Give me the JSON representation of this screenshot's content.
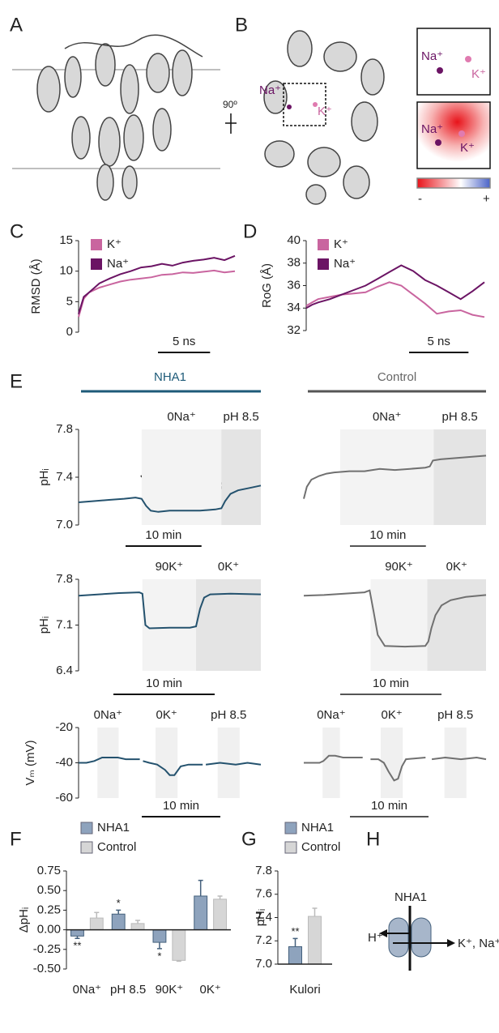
{
  "figure": {
    "panel_labels": [
      "A",
      "B",
      "C",
      "D",
      "E",
      "F",
      "G",
      "H"
    ],
    "panel_A": {
      "rotation": "90º"
    },
    "panel_B": {
      "main_na": "Na⁺",
      "main_k": "K⁺",
      "inset1_na": "Na⁺",
      "inset1_k": "K⁺",
      "inset2_na": "Na⁺",
      "inset2_k": "K⁺",
      "scale_min": "-",
      "scale_max": "+"
    },
    "panel_E": {
      "left_title": "NHA1",
      "right_title": "Control"
    },
    "panel_H": {
      "protein": "NHA1",
      "left_ion": "H⁺",
      "right_ions": "K⁺, Na⁺"
    }
  },
  "chart_data": [
    {
      "type": "line",
      "ylabel": "RMSD (Å)",
      "x": [
        0,
        0.5,
        1,
        2,
        3,
        4,
        5,
        6,
        7,
        8,
        9,
        10,
        11,
        12,
        13,
        14,
        15
      ],
      "xlim": [
        0,
        15
      ],
      "ylim": [
        0,
        15
      ],
      "yticks": [
        0,
        5,
        10,
        15
      ],
      "series": [
        {
          "name": "K⁺",
          "color": "#c9659f",
          "values": [
            2.5,
            5.5,
            6.5,
            7.3,
            7.8,
            8.3,
            8.6,
            8.8,
            9.0,
            9.4,
            9.5,
            9.8,
            9.7,
            9.9,
            10.1,
            9.8,
            10.0
          ]
        },
        {
          "name": "Na⁺",
          "color": "#6b1464",
          "values": [
            3.0,
            5.8,
            6.5,
            8.0,
            8.8,
            9.5,
            10.0,
            10.6,
            10.8,
            11.2,
            10.9,
            11.4,
            11.7,
            11.9,
            12.2,
            11.8,
            12.5
          ]
        }
      ],
      "scalebar": {
        "length": 5,
        "label": "5 ns"
      }
    },
    {
      "type": "line",
      "ylabel": "RoG (Å)",
      "x": [
        0,
        0.5,
        1,
        2,
        3,
        4,
        5,
        6,
        7,
        8,
        9,
        10,
        11,
        12,
        13,
        14,
        15
      ],
      "xlim": [
        0,
        15
      ],
      "ylim": [
        32,
        40
      ],
      "yticks": [
        32,
        34,
        36,
        38,
        40
      ],
      "series": [
        {
          "name": "K⁺",
          "color": "#c9659f",
          "values": [
            34.2,
            34.5,
            34.8,
            35.0,
            35.2,
            35.3,
            35.4,
            35.9,
            36.3,
            36.0,
            35.2,
            34.4,
            33.5,
            33.7,
            33.8,
            33.4,
            33.2
          ]
        },
        {
          "name": "Na⁺",
          "color": "#6b1464",
          "values": [
            34.0,
            34.3,
            34.5,
            34.8,
            35.2,
            35.6,
            36.0,
            36.6,
            37.2,
            37.8,
            37.3,
            36.5,
            36.0,
            35.4,
            34.8,
            35.5,
            36.3
          ]
        }
      ],
      "scalebar": {
        "length": 5,
        "label": "5 ns"
      }
    },
    {
      "type": "line",
      "ylabel": "pHᵢ",
      "color": "#24526e",
      "x": [
        0,
        2,
        4,
        6,
        7.5,
        8.3,
        8.9,
        9.5,
        10.5,
        12,
        14,
        16,
        18,
        18.8,
        19.3,
        20,
        21,
        22.5,
        24
      ],
      "values": [
        7.19,
        7.2,
        7.21,
        7.22,
        7.23,
        7.22,
        7.16,
        7.12,
        7.11,
        7.12,
        7.12,
        7.12,
        7.13,
        7.14,
        7.2,
        7.26,
        7.29,
        7.31,
        7.33
      ],
      "xlim": [
        0,
        24
      ],
      "ylim": [
        7.0,
        7.8
      ],
      "yticks": [
        {
          "value": 7,
          "label": "7.0"
        },
        7.4,
        7.8
      ],
      "shades": [
        {
          "label": "0Na⁺",
          "start": 8.3,
          "end": 18.8,
          "color": "#f3f3f3"
        },
        {
          "label": "pH 8.5",
          "start": 18.8,
          "end": 24,
          "color": "#e4e4e4"
        }
      ],
      "scalebar": {
        "length": 10,
        "label": "10 min"
      }
    },
    {
      "type": "line",
      "color": "#707070",
      "x": [
        0,
        0.4,
        1,
        2,
        3,
        4,
        6,
        8,
        10,
        12,
        14,
        16,
        16.6,
        17,
        18,
        20,
        22,
        24
      ],
      "values": [
        7.22,
        7.32,
        7.38,
        7.41,
        7.43,
        7.44,
        7.45,
        7.45,
        7.47,
        7.46,
        7.47,
        7.48,
        7.49,
        7.54,
        7.55,
        7.56,
        7.57,
        7.58
      ],
      "xlim": [
        0,
        24
      ],
      "ylim": [
        7.0,
        7.8
      ],
      "shades": [
        {
          "label": "0Na⁺",
          "start": 4.8,
          "end": 17.1,
          "color": "#f3f3f3"
        },
        {
          "label": "pH 8.5",
          "start": 17.1,
          "end": 24,
          "color": "#e4e4e4"
        }
      ],
      "scalebar": {
        "length": 10,
        "label": "10 min"
      }
    },
    {
      "type": "line",
      "ylabel": "pHᵢ",
      "color": "#24526e",
      "x": [
        0,
        2,
        4,
        6,
        6.3,
        6.6,
        7,
        9,
        11,
        11.6,
        12,
        12.4,
        13,
        15,
        18
      ],
      "values": [
        7.55,
        7.57,
        7.59,
        7.6,
        7.58,
        7.1,
        7.05,
        7.06,
        7.06,
        7.08,
        7.35,
        7.52,
        7.57,
        7.58,
        7.57
      ],
      "xlim": [
        0,
        18
      ],
      "ylim": [
        6.4,
        7.8
      ],
      "yticks": [
        6.4,
        7.1,
        7.8
      ],
      "shades": [
        {
          "label": "90K⁺",
          "start": 6.3,
          "end": 11.6,
          "color": "#f3f3f3"
        },
        {
          "label": "0K⁺",
          "start": 11.6,
          "end": 18,
          "color": "#e4e4e4"
        }
      ],
      "scalebar": {
        "length": 10,
        "label": "10 min"
      }
    },
    {
      "type": "line",
      "color": "#707070",
      "x": [
        0,
        2,
        4,
        6,
        6.5,
        6.9,
        7.3,
        8,
        10,
        12,
        12.3,
        12.6,
        13,
        13.6,
        14.5,
        16,
        18
      ],
      "values": [
        7.55,
        7.56,
        7.58,
        7.6,
        7.63,
        7.3,
        6.95,
        6.78,
        6.77,
        6.78,
        6.85,
        7.05,
        7.25,
        7.4,
        7.48,
        7.53,
        7.56
      ],
      "xlim": [
        0,
        18
      ],
      "ylim": [
        6.4,
        7.8
      ],
      "shades": [
        {
          "label": "90K⁺",
          "start": 6.6,
          "end": 12.2,
          "color": "#f3f3f3"
        },
        {
          "label": "0K⁺",
          "start": 12.2,
          "end": 18,
          "color": "#e4e4e4"
        }
      ],
      "scalebar": {
        "length": 10,
        "label": "10 min"
      }
    },
    {
      "type": "line",
      "ylabel": "Vₘ (mV)",
      "color": "#24526e",
      "x": [
        0,
        1,
        2,
        3,
        4,
        5,
        6,
        7.8,
        8,
        8.2,
        9,
        10,
        11,
        11.6,
        12.2,
        13,
        14,
        15.8,
        16,
        16.2,
        18,
        20,
        21.5,
        23.2
      ],
      "values": [
        -40,
        -40,
        -39,
        -37,
        -37,
        -37,
        -38,
        -38,
        null,
        -39,
        -40,
        -41,
        -44,
        -47,
        -47,
        -42,
        -41,
        -41,
        null,
        -41,
        -40,
        -41,
        -40,
        -41
      ],
      "xlim": [
        0,
        23.2
      ],
      "ylim": [
        -60,
        -20
      ],
      "yticks": [
        -60,
        -40,
        -20
      ],
      "shades": [
        {
          "label": "0Na⁺",
          "start": 2.4,
          "end": 5.1,
          "color": "#f0f0f0"
        },
        {
          "label": "0K⁺",
          "start": 9.8,
          "end": 12.6,
          "color": "#f0f0f0"
        },
        {
          "label": "pH 8.5",
          "start": 17.7,
          "end": 20.5,
          "color": "#f0f0f0"
        }
      ],
      "scalebar": {
        "length": 10,
        "label": "10 min"
      }
    },
    {
      "type": "line",
      "color": "#707070",
      "x": [
        0,
        1,
        2,
        2.5,
        3.2,
        4,
        5,
        7.5,
        8,
        8.5,
        9.5,
        10.2,
        10.8,
        11.5,
        12,
        12.5,
        13,
        15.5,
        16,
        16.3,
        18,
        20,
        22,
        23.2
      ],
      "values": [
        -40,
        -40,
        -40,
        -39,
        -36,
        -36,
        -37,
        -37,
        null,
        -38,
        -38,
        -40,
        -45,
        -50,
        -49,
        -42,
        -38,
        -37,
        null,
        -38,
        -37,
        -38,
        -37,
        -38
      ],
      "xlim": [
        0,
        23.2
      ],
      "ylim": [
        -60,
        -20
      ],
      "shades": [
        {
          "label": "0Na⁺",
          "start": 2.4,
          "end": 4.6,
          "color": "#f0f0f0"
        },
        {
          "label": "0K⁺",
          "start": 9.8,
          "end": 12.6,
          "color": "#f0f0f0"
        },
        {
          "label": "pH 8.5",
          "start": 17.9,
          "end": 20.7,
          "color": "#f0f0f0"
        }
      ],
      "scalebar": {
        "length": 10,
        "label": "10 min"
      }
    },
    {
      "type": "bar",
      "ylabel": "ΔpHᵢ",
      "categories": [
        "0Na⁺",
        "pH 8.5",
        "90K⁺",
        "0K⁺"
      ],
      "series": [
        {
          "name": "NHA1",
          "color": "#8ea3bd",
          "values": [
            -0.08,
            0.2,
            -0.16,
            0.43
          ],
          "errors": [
            0.03,
            0.05,
            0.08,
            0.2
          ],
          "significance": [
            "**",
            "*",
            "*",
            null
          ]
        },
        {
          "name": "Control",
          "color": "#d6d6d6",
          "values": [
            0.15,
            0.08,
            -0.39,
            0.39
          ],
          "errors": [
            0.07,
            0.04,
            0.01,
            0.04
          ]
        }
      ],
      "ylim": [
        -0.5,
        0.75
      ],
      "yticks": [
        {
          "value": -0.5,
          "label": "-0.50"
        },
        -0.25,
        {
          "value": 0,
          "label": "0.00"
        },
        0.25,
        {
          "value": 0.5,
          "label": "0.50"
        },
        0.75
      ]
    },
    {
      "type": "bar",
      "ylabel": "pHᵢ",
      "categories": [
        "Kulori"
      ],
      "series": [
        {
          "name": "NHA1",
          "color": "#8ea3bd",
          "values": [
            7.15
          ],
          "errors": [
            0.07
          ],
          "significance": [
            "**"
          ]
        },
        {
          "name": "Control",
          "color": "#d6d6d6",
          "values": [
            7.41
          ],
          "errors": [
            0.07
          ]
        }
      ],
      "ylim": [
        7.0,
        7.8
      ],
      "yticks": [
        {
          "value": 7,
          "label": "7.0"
        },
        7.2,
        7.4,
        7.6,
        7.8
      ]
    }
  ]
}
